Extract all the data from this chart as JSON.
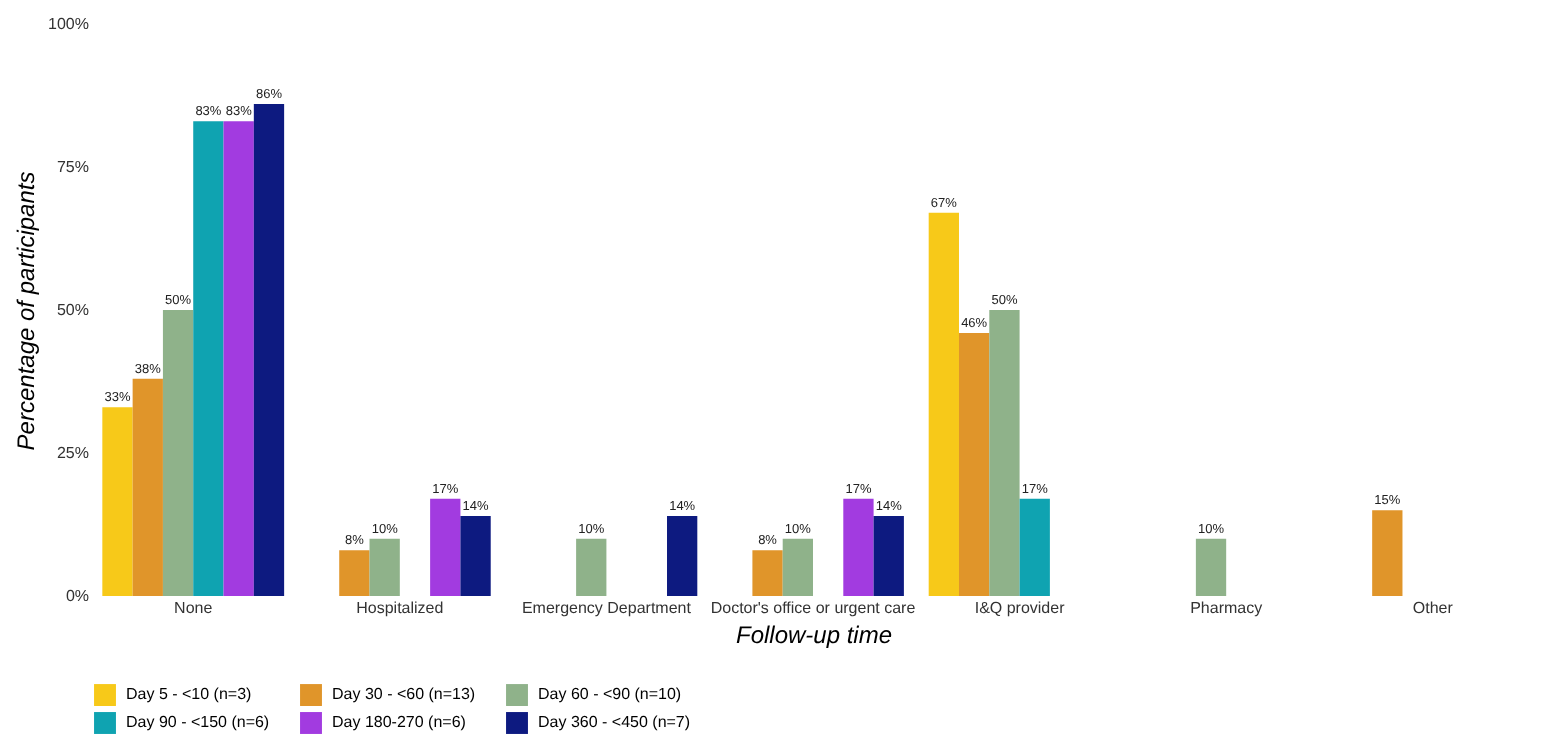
{
  "chart_data": {
    "type": "bar",
    "xlabel": "Follow-up time",
    "ylabel": "Percentage of participants",
    "categories": [
      "None",
      "Hospitalized",
      "Emergency Department",
      "Doctor's office or urgent care",
      "I&Q provider",
      "Pharmacy",
      "Other"
    ],
    "series": [
      {
        "name": "Day 5 - <10 (n=3)",
        "color": "#f7c919",
        "values": [
          33,
          null,
          null,
          null,
          67,
          null,
          null
        ],
        "value_labels": [
          "33%",
          null,
          null,
          null,
          "67%",
          null,
          null
        ]
      },
      {
        "name": "Day 30 - <60 (n=13)",
        "color": "#e0952a",
        "values": [
          38,
          8,
          null,
          8,
          46,
          null,
          15
        ],
        "value_labels": [
          "38%",
          "8%",
          null,
          "8%",
          "46%",
          null,
          "15%"
        ]
      },
      {
        "name": "Day 60 - <90 (n=10)",
        "color": "#8fb28a",
        "values": [
          50,
          10,
          10,
          10,
          50,
          10,
          null
        ],
        "value_labels": [
          "50%",
          "10%",
          "10%",
          "10%",
          "50%",
          "10%",
          null
        ]
      },
      {
        "name": "Day 90 - <150 (n=6)",
        "color": "#0fa3b1",
        "values": [
          83,
          null,
          null,
          null,
          17,
          null,
          null
        ],
        "value_labels": [
          "83%",
          null,
          null,
          null,
          "17%",
          null,
          null
        ]
      },
      {
        "name": "Day 180-270 (n=6)",
        "color": "#a23be0",
        "values": [
          83,
          17,
          null,
          17,
          null,
          null,
          null
        ],
        "value_labels": [
          "83%",
          "17%",
          null,
          "17%",
          null,
          null,
          null
        ]
      },
      {
        "name": "Day 360 - <450 (n=7)",
        "color": "#0d1a80",
        "values": [
          86,
          14,
          14,
          14,
          null,
          null,
          null
        ],
        "value_labels": [
          "86%",
          "14%",
          "14%",
          "14%",
          null,
          null,
          null
        ]
      }
    ],
    "ylim": [
      0,
      100
    ],
    "yticks": [
      {
        "value": 0,
        "label": "0%"
      },
      {
        "value": 25,
        "label": "25%"
      },
      {
        "value": 50,
        "label": "50%"
      },
      {
        "value": 75,
        "label": "75%"
      },
      {
        "value": 100,
        "label": "100%"
      }
    ],
    "grid": false,
    "legend": "bottom"
  }
}
